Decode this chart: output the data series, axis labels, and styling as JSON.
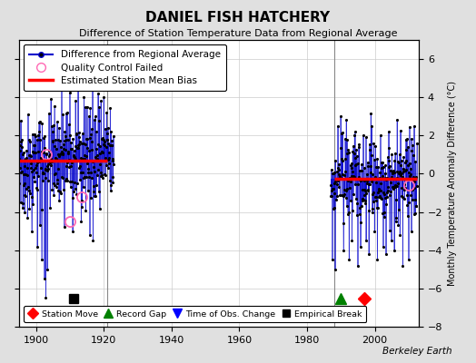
{
  "title": "DANIEL FISH HATCHERY",
  "subtitle": "Difference of Station Temperature Data from Regional Average",
  "ylabel": "Monthly Temperature Anomaly Difference (°C)",
  "xlabel_years": [
    1900,
    1920,
    1940,
    1960,
    1980,
    2000
  ],
  "ylim": [
    -8,
    7
  ],
  "yticks": [
    -8,
    -6,
    -4,
    -2,
    0,
    2,
    4,
    6
  ],
  "xlim": [
    1895,
    2013
  ],
  "bg_color": "#e0e0e0",
  "plot_bg_color": "#ffffff",
  "line_color": "#0000cc",
  "bias_color": "#ff0000",
  "marker_color": "#000000",
  "qc_color": "#ff69b4",
  "bias1": 0.7,
  "bias2": -0.25,
  "seg1_start": 1895.0,
  "seg1_end": 1923.0,
  "seg2_start": 1987.0,
  "seg2_end": 2012.5,
  "vline1": 1921,
  "vline2": 1988,
  "empirical_break_x": 1911,
  "record_gap_x": 1990,
  "station_move_x": 1997,
  "bottom_marker_y": -6.55,
  "watermark": "Berkeley Earth",
  "title_fontsize": 11,
  "subtitle_fontsize": 8,
  "tick_fontsize": 8,
  "ylabel_fontsize": 7
}
